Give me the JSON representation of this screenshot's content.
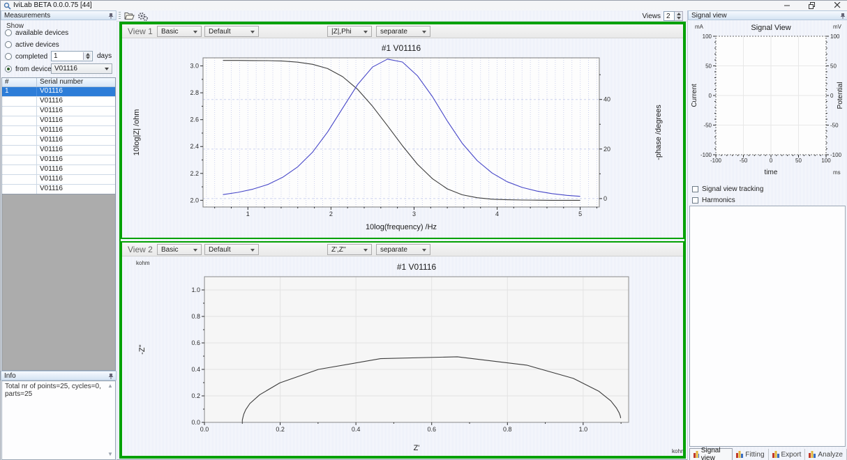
{
  "window": {
    "title": "IviLab BETA 0.0.0.75 [44]"
  },
  "toolbar": {
    "views_label": "Views",
    "views_value": "2"
  },
  "sidebar": {
    "measurements_header": "Measurements",
    "show_label": "Show",
    "radio_available": "available devices",
    "radio_active": "active devices",
    "radio_completed": "completed",
    "completed_value": "1",
    "completed_suffix": "days",
    "radio_from_device": "from device",
    "device_select_value": "V01116",
    "table": {
      "col_num": "#",
      "col_serial": "Serial number",
      "rows": [
        {
          "num": "1",
          "serial": "V01116",
          "selected": true
        },
        {
          "num": "",
          "serial": "V01116",
          "selected": false
        },
        {
          "num": "",
          "serial": "V01116",
          "selected": false
        },
        {
          "num": "",
          "serial": "V01116",
          "selected": false
        },
        {
          "num": "",
          "serial": "V01116",
          "selected": false
        },
        {
          "num": "",
          "serial": "V01116",
          "selected": false
        },
        {
          "num": "",
          "serial": "V01116",
          "selected": false
        },
        {
          "num": "",
          "serial": "V01116",
          "selected": false
        },
        {
          "num": "",
          "serial": "V01116",
          "selected": false
        },
        {
          "num": "",
          "serial": "V01116",
          "selected": false
        },
        {
          "num": "",
          "serial": "V01116",
          "selected": false
        }
      ]
    },
    "info_header": "Info",
    "info_text": "Total nr of points=25, cycles=0, parts=25"
  },
  "views": {
    "view1": {
      "label": "View 1",
      "dd_mode": "Basic",
      "dd_preset": "Default",
      "dd_quantity": "|Z|,Phi",
      "dd_layout": "separate"
    },
    "view2": {
      "label": "View 2",
      "dd_mode": "Basic",
      "dd_preset": "Default",
      "dd_quantity": "Z',Z''",
      "dd_layout": "separate"
    }
  },
  "signal_panel": {
    "header": "Signal view",
    "checkbox_tracking": "Signal view tracking",
    "checkbox_harmonics": "Harmonics",
    "tabs": [
      {
        "label": "Signal view",
        "active": true
      },
      {
        "label": "Fitting",
        "active": false
      },
      {
        "label": "Export",
        "active": false
      },
      {
        "label": "Analyze",
        "active": false
      }
    ]
  },
  "colors": {
    "accent_green": "#04a104",
    "selection_blue": "#2d7dd8",
    "curve_black": "#3c3c3c",
    "curve_blue": "#4646c8"
  },
  "chart_data": [
    {
      "id": "bode",
      "type": "line",
      "title": "#1 V01116",
      "xlabel": "10log(frequency) /Hz",
      "ylabel_left": "10log|Z| /ohm",
      "ylabel_right": "-phase /degrees",
      "xlim": [
        0.46,
        5.23
      ],
      "ylim_left": [
        1.95,
        3.06
      ],
      "ylim_right": [
        -3.4,
        56.8
      ],
      "xticks": [
        1,
        2,
        3,
        4,
        5
      ],
      "xminor": 0.2,
      "yticks_left": [
        2.0,
        2.2,
        2.4,
        2.6,
        2.8,
        3.0
      ],
      "yminor_left": 0.1,
      "yticks_right": [
        0,
        20,
        40
      ],
      "yminor_right": 10,
      "grid_color": "#ccd2ee",
      "series": [
        {
          "name": "10log|Z|",
          "axis": "left",
          "color": "#3c3c3c",
          "x": [
            0.7,
            0.88,
            1.06,
            1.24,
            1.42,
            1.6,
            1.78,
            1.96,
            2.14,
            2.32,
            2.5,
            2.68,
            2.86,
            3.04,
            3.22,
            3.4,
            3.58,
            3.76,
            3.94,
            4.12,
            4.3,
            4.48,
            4.66,
            4.84,
            5.0
          ],
          "y": [
            3.041,
            3.041,
            3.04,
            3.039,
            3.036,
            3.028,
            3.012,
            2.98,
            2.92,
            2.826,
            2.7,
            2.555,
            2.406,
            2.269,
            2.161,
            2.085,
            2.041,
            2.019,
            2.008,
            2.004,
            2.002,
            2.001,
            2.0,
            2.0,
            2.0
          ]
        },
        {
          "name": "-phase",
          "axis": "right",
          "color": "#4646c8",
          "x": [
            0.7,
            0.88,
            1.06,
            1.24,
            1.42,
            1.6,
            1.78,
            1.96,
            2.14,
            2.32,
            2.5,
            2.68,
            2.86,
            3.04,
            3.22,
            3.4,
            3.58,
            3.76,
            3.94,
            4.12,
            4.3,
            4.48,
            4.66,
            4.84,
            5.0
          ],
          "y": [
            1.6,
            2.5,
            3.8,
            5.7,
            8.6,
            12.8,
            18.8,
            26.9,
            36.5,
            46.0,
            53.1,
            56.3,
            55.1,
            49.6,
            41.2,
            31.3,
            22.3,
            15.3,
            10.3,
            6.8,
            4.5,
            3.0,
            2.0,
            1.3,
            0.9
          ]
        }
      ]
    },
    {
      "id": "nyquist",
      "type": "line",
      "title": "#1 V01116",
      "xlabel": "Z'",
      "ylabel_left": "-Z''",
      "x_unit": "kohm",
      "y_unit": "kohm",
      "xlim": [
        0,
        1.12
      ],
      "ylim_left": [
        0,
        1.1
      ],
      "xticks": [
        0.0,
        0.2,
        0.4,
        0.6,
        0.8,
        1.0
      ],
      "xminor": 0.1,
      "yticks_left": [
        0.0,
        0.2,
        0.4,
        0.6,
        0.8,
        1.0
      ],
      "yminor_left": 0.1,
      "grid_color": "#e3e3e3",
      "series": [
        {
          "name": "Z' vs -Z''",
          "axis": "left",
          "color": "#3c3c3c",
          "x": [
            0.1,
            0.1,
            0.1,
            0.1,
            0.1,
            0.1,
            0.1,
            0.101,
            0.102,
            0.104,
            0.109,
            0.12,
            0.146,
            0.199,
            0.301,
            0.465,
            0.668,
            0.851,
            0.974,
            1.041,
            1.073,
            1.088,
            1.095,
            1.098,
            1.099
          ],
          "y": [
            0.002,
            0.002,
            0.004,
            0.005,
            0.008,
            0.012,
            0.018,
            0.028,
            0.042,
            0.063,
            0.096,
            0.142,
            0.209,
            0.298,
            0.4,
            0.481,
            0.495,
            0.432,
            0.332,
            0.236,
            0.162,
            0.108,
            0.072,
            0.048,
            0.032
          ]
        }
      ]
    },
    {
      "id": "signal",
      "type": "line",
      "title": "Signal View",
      "xlabel": "time",
      "x_unit": "ms",
      "ylabel_left": "Current",
      "y_left_unit": "mA",
      "ylabel_right": "Potential",
      "y_right_unit": "mV",
      "xlim": [
        -100,
        100
      ],
      "ylim_left": [
        -100,
        100
      ],
      "ylim_right": [
        -100,
        100
      ],
      "xticks": [
        -100,
        -50,
        0,
        50,
        100
      ],
      "xminor": 10,
      "yticks_left": [
        -100,
        -50,
        0,
        50,
        100
      ],
      "yminor_left": 10,
      "yticks_right": [
        -100,
        -50,
        0,
        50,
        100
      ],
      "yminor_right": 10,
      "grid_color": "#e8e8e8",
      "series": []
    }
  ]
}
